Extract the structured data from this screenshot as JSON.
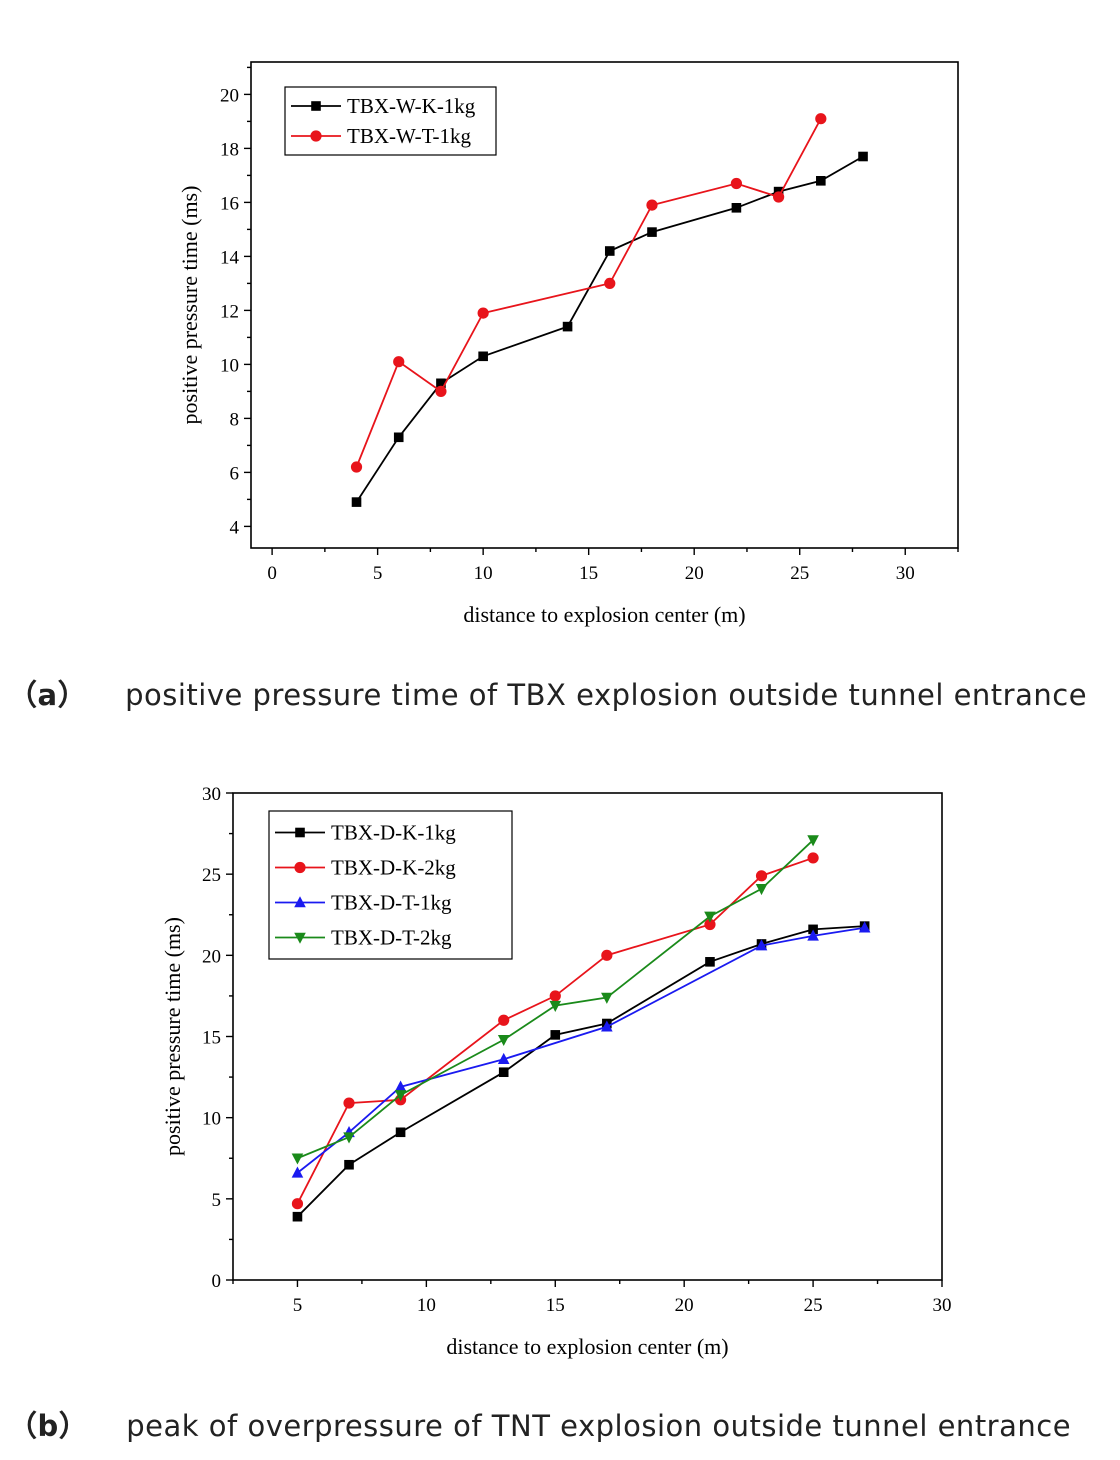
{
  "chart_data": [
    {
      "type": "line",
      "caption_tag": "（a）",
      "caption_text": "positive pressure time of TBX explosion outside tunnel entrance",
      "xlabel": "distance to explosion center (m)",
      "ylabel": "positive pressure time (ms)",
      "xlim": [
        -1,
        32.5
      ],
      "ylim": [
        3.2,
        21.2
      ],
      "xticks": [
        0,
        5,
        10,
        15,
        20,
        25,
        30
      ],
      "yticks": [
        4,
        6,
        8,
        10,
        12,
        14,
        16,
        18,
        20
      ],
      "legend_position": "top-left",
      "series": [
        {
          "name": "TBX-W-K-1kg",
          "color": "#000000",
          "marker": "square",
          "x": [
            4,
            6,
            8,
            10,
            14,
            16,
            18,
            22,
            24,
            26,
            28
          ],
          "y": [
            4.9,
            7.3,
            9.3,
            10.3,
            11.4,
            14.2,
            14.9,
            15.8,
            16.4,
            16.8,
            17.7
          ]
        },
        {
          "name": "TBX-W-T-1kg",
          "color": "#e8141b",
          "marker": "circle",
          "x": [
            4,
            6,
            8,
            10,
            16,
            18,
            22,
            24,
            26
          ],
          "y": [
            6.2,
            10.1,
            9.0,
            11.9,
            13.0,
            15.9,
            16.7,
            16.2,
            19.1
          ]
        }
      ]
    },
    {
      "type": "line",
      "caption_tag": "（b）",
      "caption_text": "peak of overpressure of TNT explosion outside tunnel entrance",
      "xlabel": "distance to explosion center (m)",
      "ylabel": "positive pressure time (ms)",
      "xlim": [
        2.5,
        30
      ],
      "ylim": [
        0,
        30
      ],
      "xticks": [
        5,
        10,
        15,
        20,
        25,
        30
      ],
      "yticks": [
        0,
        5,
        10,
        15,
        20,
        25,
        30
      ],
      "legend_position": "top-left",
      "series": [
        {
          "name": "TBX-D-K-1kg",
          "color": "#000000",
          "marker": "square",
          "x": [
            5,
            7,
            9,
            13,
            15,
            17,
            21,
            23,
            25,
            27
          ],
          "y": [
            3.9,
            7.1,
            9.1,
            12.8,
            15.1,
            15.8,
            19.6,
            20.7,
            21.6,
            21.8
          ]
        },
        {
          "name": "TBX-D-K-2kg",
          "color": "#e8141b",
          "marker": "circle",
          "x": [
            5,
            7,
            9,
            13,
            15,
            17,
            21,
            23,
            25
          ],
          "y": [
            4.7,
            10.9,
            11.1,
            16.0,
            17.5,
            20.0,
            21.9,
            24.9,
            26.0
          ]
        },
        {
          "name": "TBX-D-T-1kg",
          "color": "#1a1af0",
          "marker": "triangle-up",
          "x": [
            5,
            7,
            9,
            13,
            17,
            23,
            25,
            27
          ],
          "y": [
            6.6,
            9.1,
            11.9,
            13.6,
            15.6,
            20.6,
            21.2,
            21.7
          ]
        },
        {
          "name": "TBX-D-T-2kg",
          "color": "#1a8a1a",
          "marker": "triangle-down",
          "x": [
            5,
            7,
            9,
            13,
            15,
            17,
            21,
            23,
            25
          ],
          "y": [
            7.5,
            8.8,
            11.4,
            14.8,
            16.9,
            17.4,
            22.4,
            24.1,
            27.1
          ]
        }
      ]
    }
  ]
}
